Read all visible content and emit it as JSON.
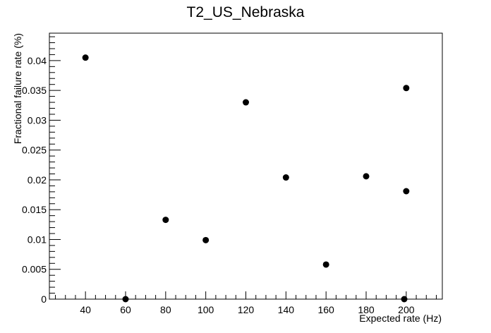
{
  "chart_data": {
    "type": "scatter",
    "title": "T2_US_Nebraska",
    "xlabel": "Expected rate (Hz)",
    "ylabel": "Fractional failure rate (%)",
    "xlim": [
      22,
      218
    ],
    "ylim": [
      0,
      0.0446
    ],
    "xticks": [
      40,
      60,
      80,
      100,
      120,
      140,
      160,
      180,
      200
    ],
    "xtick_labels": [
      "40",
      "60",
      "80",
      "100",
      "120",
      "140",
      "160",
      "180",
      "200"
    ],
    "yticks": [
      0,
      0.005,
      0.01,
      0.015,
      0.02,
      0.025,
      0.03,
      0.035,
      0.04
    ],
    "ytick_labels": [
      "0",
      "0.005",
      "0.01",
      "0.015",
      "0.02",
      "0.025",
      "0.03",
      "0.035",
      "0.04"
    ],
    "grid": false,
    "marker_color": "#000000",
    "series": [
      {
        "points": [
          {
            "x": 40,
            "y": 0.0405
          },
          {
            "x": 60,
            "y": 0.0
          },
          {
            "x": 80,
            "y": 0.0133
          },
          {
            "x": 100,
            "y": 0.0099
          },
          {
            "x": 120,
            "y": 0.033
          },
          {
            "x": 140,
            "y": 0.0204
          },
          {
            "x": 160,
            "y": 0.0058
          },
          {
            "x": 180,
            "y": 0.0206
          },
          {
            "x": 200,
            "y": 0.0354
          },
          {
            "x": 200,
            "y": 0.0181
          },
          {
            "x": 199,
            "y": 0.0
          }
        ]
      }
    ]
  }
}
